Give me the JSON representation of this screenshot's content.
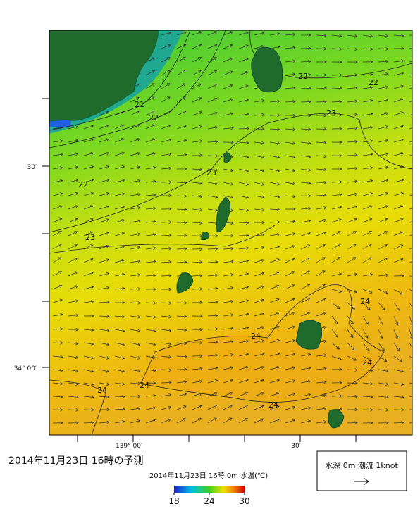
{
  "title": "2014年11月23日  16時の予測",
  "map": {
    "subtitle": "2014年11月23日 16時 0m 水温(℃)",
    "lat_labels": [
      "30′",
      "34° 00′"
    ],
    "lon_labels": [
      "139° 00′",
      "30′"
    ],
    "contour_labels": [
      "21",
      "22",
      "22",
      "22",
      "22",
      "23",
      "23",
      "23",
      "24",
      "24",
      "24",
      "24",
      "24",
      "24"
    ]
  },
  "colorbar": {
    "min": 18,
    "max": 30,
    "ticks": [
      18,
      24,
      30
    ]
  },
  "legend": {
    "label": "水深 0m 潮流 1knot"
  }
}
